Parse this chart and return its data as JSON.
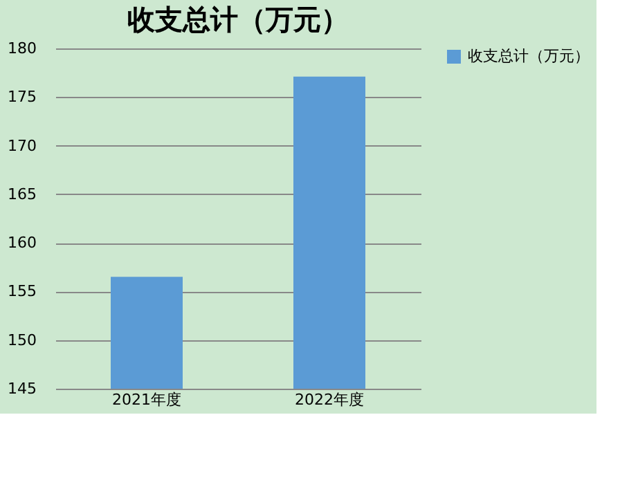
{
  "chart_data": {
    "type": "bar",
    "title": "收支总计（万元）",
    "categories": [
      "2021年度",
      "2022年度"
    ],
    "series": [
      {
        "name": "收支总计（万元）",
        "color": "#5b9bd5",
        "values": [
          156.5,
          177.1
        ]
      }
    ],
    "ylim": [
      145,
      180
    ],
    "yticks": [
      145,
      150,
      155,
      160,
      165,
      170,
      175,
      180
    ],
    "grid": "y",
    "legend": "right"
  }
}
